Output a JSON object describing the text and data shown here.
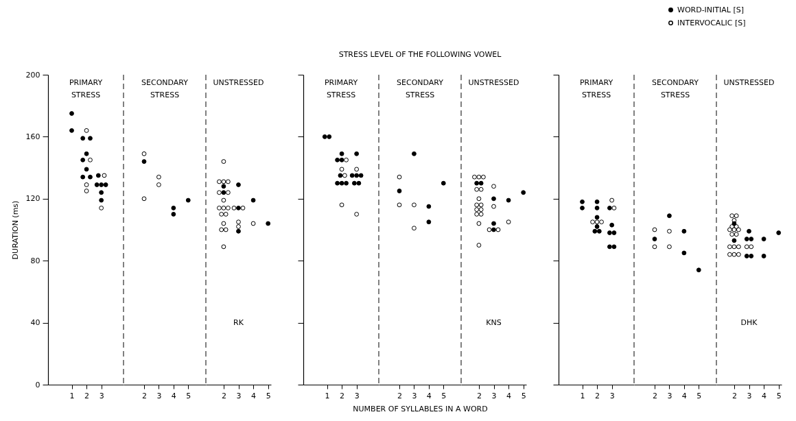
{
  "chart_data": [
    {
      "type": "scatter",
      "title": "PRIMARY STRESS",
      "ylabel": "DURATION (ms)",
      "xlim": [
        -0.6,
        4.5
      ],
      "ylim": [
        0,
        200
      ],
      "yticks": [
        0,
        40,
        80,
        120,
        160,
        200
      ],
      "xticks": [
        1,
        2,
        3
      ],
      "grid": false,
      "marker": "circle",
      "series": [
        {
          "color": "#000000",
          "x": [
            1,
            1,
            1.75,
            2.25,
            2,
            1.75,
            2,
            1.75,
            2.25,
            2.8,
            2.7,
            3,
            3.3,
            3,
            3
          ],
          "values": [
            175,
            164,
            159,
            159,
            149,
            145,
            139,
            134,
            134,
            135,
            129,
            129,
            129,
            124,
            119
          ]
        },
        {
          "color": "#ffffff",
          "x": [
            2,
            2.25,
            2,
            2,
            3.2,
            3
          ],
          "values": [
            164,
            145,
            129,
            125,
            135,
            114
          ]
        }
      ]
    },
    {
      "type": "scatter",
      "title": "SECONDARY STRESS",
      "xlim": [
        0.6,
        6.2
      ],
      "ylim": [
        0,
        200
      ],
      "xticks": [
        2,
        3,
        4,
        5
      ],
      "tick_labels": "x",
      "grid": false,
      "marker": "circle",
      "series": [
        {
          "color": "#000000",
          "x": [
            2,
            4,
            4,
            5
          ],
          "values": [
            144,
            114,
            110,
            119
          ]
        },
        {
          "color": "#ffffff",
          "x": [
            2,
            2,
            3,
            3
          ],
          "values": [
            149,
            120,
            134,
            129
          ]
        }
      ],
      "ref_lines": [
        {
          "axis": "x",
          "value": 0.6,
          "line_style": "dashed"
        }
      ]
    },
    {
      "type": "scatter",
      "title": "UNSTRESSED",
      "xlim": [
        0.8,
        5.2
      ],
      "ylim": [
        0,
        200
      ],
      "xticks": [
        2,
        3,
        4,
        5
      ],
      "tick_labels": "x",
      "grid": false,
      "marker": "circle",
      "series": [
        {
          "color": "#000000",
          "x": [
            2,
            2,
            3,
            3,
            3,
            4,
            5
          ],
          "values": [
            128,
            124,
            129,
            114,
            99,
            119,
            104
          ]
        },
        {
          "color": "#ffffff",
          "x": [
            2,
            1.7,
            2,
            2.3,
            1.7,
            2.3,
            2,
            1.7,
            2,
            2.3,
            1.85,
            2.15,
            2,
            1.85,
            2.15,
            2,
            2.7,
            3.3,
            3,
            3,
            4
          ],
          "values": [
            144,
            131,
            131,
            131,
            124,
            124,
            119,
            114,
            114,
            114,
            110,
            110,
            104,
            100,
            100,
            89,
            114,
            114,
            105,
            102,
            104
          ]
        }
      ],
      "ref_lines": [
        {
          "axis": "x",
          "value": 0.8,
          "line_style": "dashed"
        }
      ],
      "annotations": [
        "RK"
      ]
    },
    {
      "type": "scatter",
      "title": "PRIMARY STRESS",
      "xlim": [
        -0.6,
        4.5
      ],
      "ylim": [
        0,
        200
      ],
      "yticks": [
        0,
        40,
        80,
        120,
        160,
        200
      ],
      "xticks": [
        1,
        2,
        3
      ],
      "tick_labels": "x",
      "grid": false,
      "marker": "circle",
      "series": [
        {
          "color": "#000000",
          "x": [
            0.85,
            1.15,
            2,
            1.7,
            2,
            1.9,
            1.7,
            2,
            2.3,
            3,
            2.7,
            3,
            3.3,
            2.85,
            3.15
          ],
          "values": [
            160,
            160,
            149,
            145,
            145,
            135,
            130,
            130,
            130,
            149,
            135,
            135,
            135,
            130,
            130
          ]
        },
        {
          "color": "#ffffff",
          "x": [
            2.3,
            2,
            2.2,
            2,
            3,
            3
          ],
          "values": [
            145,
            139,
            135,
            116,
            139,
            110
          ]
        }
      ]
    },
    {
      "type": "scatter",
      "title": "SECONDARY STRESS",
      "subtitle": "STRESS LEVEL OF THE FOLLOWING VOWEL",
      "xlabel": "NUMBER OF SYLLABLES IN A WORD",
      "xlim": [
        0.6,
        6.2
      ],
      "ylim": [
        0,
        200
      ],
      "xticks": [
        2,
        3,
        4,
        5
      ],
      "tick_labels": "x",
      "grid": false,
      "marker": "circle",
      "series": [
        {
          "color": "#000000",
          "x": [
            2,
            3,
            4,
            4,
            5
          ],
          "values": [
            125,
            149,
            115,
            105,
            130
          ]
        },
        {
          "color": "#ffffff",
          "x": [
            2,
            2,
            3,
            3
          ],
          "values": [
            134,
            116,
            116,
            101
          ]
        }
      ],
      "ref_lines": [
        {
          "axis": "x",
          "value": 0.6,
          "line_style": "dashed"
        }
      ]
    },
    {
      "type": "scatter",
      "title": "UNSTRESSED",
      "xlim": [
        0.8,
        5.2
      ],
      "ylim": [
        0,
        200
      ],
      "xticks": [
        2,
        3,
        4,
        5
      ],
      "tick_labels": "x",
      "grid": false,
      "marker": "circle",
      "series": [
        {
          "color": "#000000",
          "x": [
            1.85,
            2.15,
            3,
            3,
            3,
            4,
            5
          ],
          "values": [
            130,
            130,
            120,
            104,
            100,
            119,
            124
          ]
        },
        {
          "color": "#ffffff",
          "x": [
            1.7,
            2,
            2.3,
            1.85,
            2.15,
            2,
            1.85,
            2.15,
            1.85,
            2.15,
            1.85,
            2.15,
            2,
            2,
            3,
            3,
            2.7,
            3.3,
            4
          ],
          "values": [
            134,
            134,
            134,
            126,
            126,
            120,
            116,
            116,
            113,
            113,
            110,
            110,
            104,
            90,
            128,
            115,
            100,
            100,
            105
          ]
        }
      ],
      "ref_lines": [
        {
          "axis": "x",
          "value": 0.8,
          "line_style": "dashed"
        }
      ],
      "annotations": [
        "KNS"
      ]
    },
    {
      "type": "scatter",
      "title": "PRIMARY STRESS",
      "xlim": [
        -0.6,
        4.5
      ],
      "ylim": [
        0,
        200
      ],
      "yticks": [
        0,
        40,
        80,
        120,
        160,
        200
      ],
      "xticks": [
        1,
        2,
        3
      ],
      "tick_labels": "x",
      "grid": false,
      "marker": "circle",
      "series": [
        {
          "color": "#000000",
          "x": [
            1,
            1,
            2,
            2,
            2,
            2,
            1.85,
            2.15,
            2.85,
            3,
            2.85,
            3.15,
            2.85,
            3.15
          ],
          "values": [
            118,
            114,
            118,
            114,
            108,
            102,
            99,
            99,
            114,
            103,
            98,
            98,
            89,
            89
          ]
        },
        {
          "color": "#ffffff",
          "x": [
            1.7,
            2,
            2.3,
            3,
            3.15
          ],
          "values": [
            105,
            105,
            105,
            119,
            114
          ]
        }
      ]
    },
    {
      "type": "scatter",
      "title": "SECONDARY STRESS",
      "xlim": [
        0.6,
        6.2
      ],
      "ylim": [
        0,
        200
      ],
      "xticks": [
        2,
        3,
        4,
        5
      ],
      "tick_labels": "x",
      "grid": false,
      "marker": "circle",
      "legend": "top right",
      "series": [
        {
          "name": "WORD-INITIAL [S]",
          "color": "#000000",
          "x": [
            2,
            3,
            4,
            4,
            5
          ],
          "values": [
            94,
            109,
            99,
            85,
            74
          ]
        },
        {
          "name": "INTERVOCALIC [S]",
          "color": "#ffffff",
          "x": [
            2,
            2,
            3,
            3
          ],
          "values": [
            100,
            89,
            99,
            89
          ]
        }
      ],
      "ref_lines": [
        {
          "axis": "x",
          "value": 0.6,
          "line_style": "dashed"
        }
      ]
    },
    {
      "type": "scatter",
      "title": "UNSTRESSED",
      "xlim": [
        0.8,
        5.2
      ],
      "ylim": [
        0,
        200
      ],
      "xticks": [
        2,
        3,
        4,
        5
      ],
      "tick_labels": "x",
      "grid": false,
      "marker": "circle",
      "series": [
        {
          "color": "#000000",
          "x": [
            2,
            2,
            3,
            2.85,
            3.15,
            2.85,
            3.15,
            4,
            4,
            5
          ],
          "values": [
            104,
            93,
            99,
            94,
            94,
            83,
            83,
            94,
            83,
            98
          ]
        },
        {
          "color": "#ffffff",
          "x": [
            1.85,
            2.15,
            2,
            1.85,
            2.15,
            1.7,
            2,
            2.3,
            1.85,
            2.15,
            1.7,
            2,
            2.3,
            1.7,
            2,
            2.3,
            2.85,
            3.15
          ],
          "values": [
            109,
            109,
            106,
            102,
            102,
            100,
            100,
            100,
            97,
            97,
            89,
            89,
            89,
            84,
            84,
            84,
            89,
            89
          ]
        }
      ],
      "ref_lines": [
        {
          "axis": "x",
          "value": 0.8,
          "line_style": "dashed"
        }
      ],
      "annotations": [
        "DHK"
      ]
    }
  ]
}
